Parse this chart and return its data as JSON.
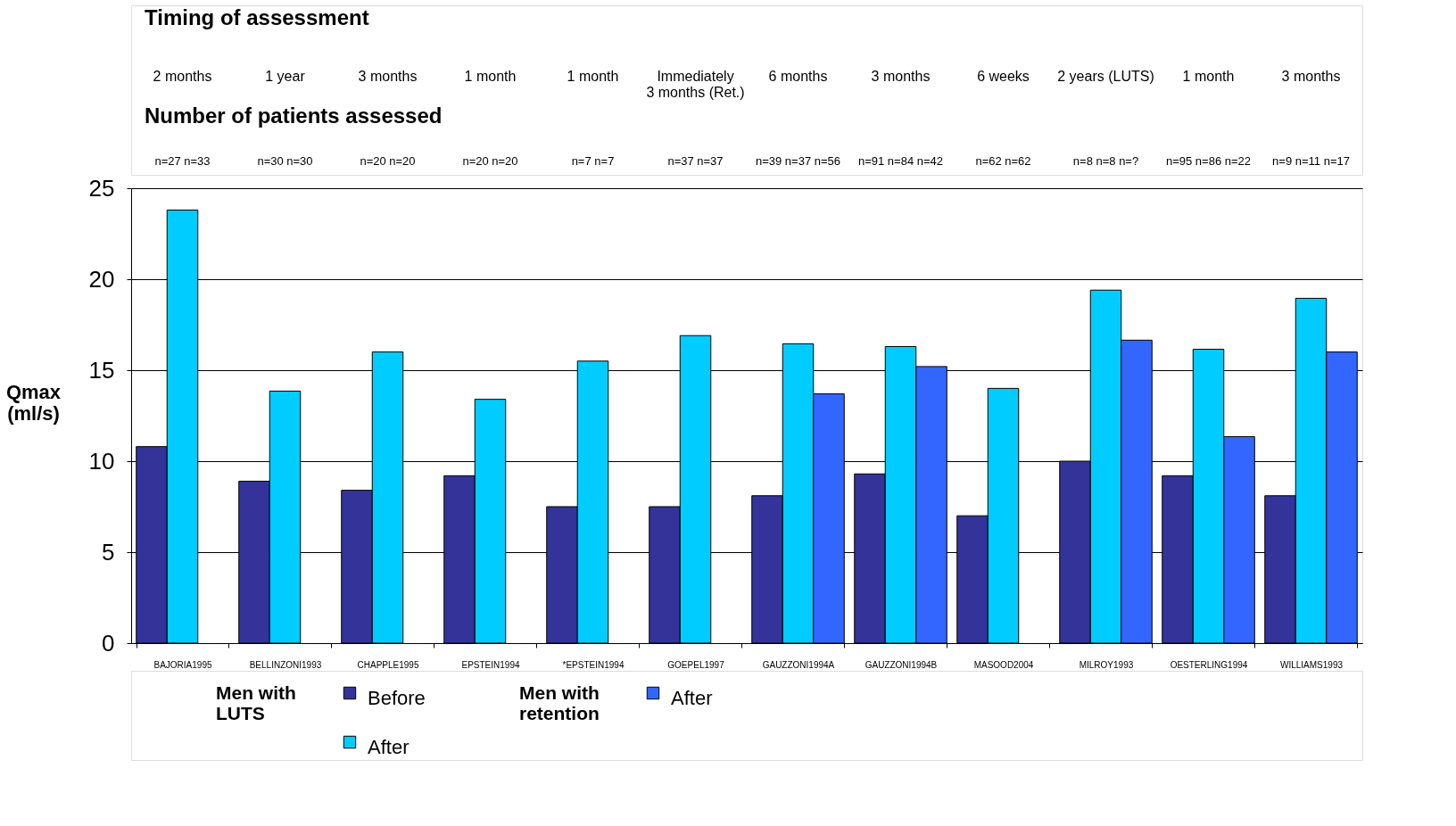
{
  "chart_data": {
    "type": "bar",
    "ylabel": "Qmax (ml/s)",
    "categories": [
      "BAJORIA1995",
      "BELLINZONI1993",
      "CHAPPLE1995",
      "EPSTEIN1994",
      "*EPSTEIN1994",
      "GOEPEL1997",
      "GAUZZONI1994A",
      "GAUZZONI1994B",
      "MASOOD2004",
      "MILROY1993",
      "OESTERLING1994",
      "WILLIAMS1993"
    ],
    "series": [
      {
        "name": "Before",
        "color": "#333399",
        "values": [
          10.8,
          8.9,
          8.4,
          9.2,
          7.5,
          7.5,
          8.1,
          9.3,
          7.0,
          10.0,
          9.2,
          8.1
        ]
      },
      {
        "name": "After",
        "color": "#00ccff",
        "values": [
          23.8,
          13.85,
          16.0,
          13.4,
          15.5,
          16.9,
          16.45,
          16.3,
          14.0,
          19.4,
          16.15,
          18.95
        ]
      },
      {
        "name": "After",
        "color": "#3366ff",
        "values": [
          null,
          null,
          null,
          null,
          null,
          null,
          13.7,
          15.2,
          null,
          16.65,
          11.35,
          16.0
        ]
      }
    ],
    "ylim": [
      0,
      25
    ],
    "yticks": [
      0,
      5,
      10,
      15,
      20,
      25
    ],
    "grid": "y",
    "legend": "bottom",
    "annotations": [
      "Timing of assessment",
      "Number of patients assessed",
      "2 months",
      "1 year",
      "3 months",
      "1 month",
      "1 month",
      "Immediately\n3 months (Ret.)",
      "6 months",
      "3 months",
      "6 weeks",
      "2 years (LUTS)",
      "1 month",
      "3 months",
      "n=27 n=33",
      "n=30 n=30",
      "n=20 n=20",
      "n=20 n=20",
      "n=7 n=7",
      "n=37 n=37",
      "n=39 n=37 n=56",
      "n=91 n=84 n=42",
      "n=62 n=62",
      "n=8 n=8 n=?",
      "n=95 n=86 n=22",
      "n=9 n=11 n=17",
      "Men with LUTS",
      "Men with retention"
    ]
  }
}
